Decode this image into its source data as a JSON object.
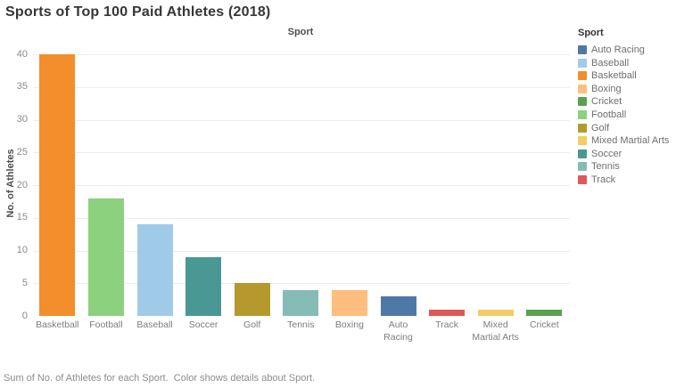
{
  "window": {
    "background": "#ffffff"
  },
  "title": "Sports of Top 100 Paid Athletes (2018)",
  "pane_header": "Sport",
  "footer": "Sum of No. of Athletes for each Sport.  Color shows details about Sport.",
  "legend": {
    "title": "Sport",
    "items": [
      {
        "label": "Auto Racing",
        "color": "#4e79a7"
      },
      {
        "label": "Baseball",
        "color": "#a0cbe8"
      },
      {
        "label": "Basketball",
        "color": "#f28e2b"
      },
      {
        "label": "Boxing",
        "color": "#ffbe7d"
      },
      {
        "label": "Cricket",
        "color": "#59a14f"
      },
      {
        "label": "Football",
        "color": "#8cd17d"
      },
      {
        "label": "Golf",
        "color": "#b6992d"
      },
      {
        "label": "Mixed Martial Arts",
        "color": "#f1ce63"
      },
      {
        "label": "Soccer",
        "color": "#499894"
      },
      {
        "label": "Tennis",
        "color": "#86bcb6"
      },
      {
        "label": "Track",
        "color": "#e15759"
      }
    ]
  },
  "chart_data": {
    "type": "bar",
    "title": "Sports of Top 100 Paid Athletes (2018)",
    "xlabel": "Sport",
    "ylabel": "No. of Athletes",
    "categories": [
      "Basketball",
      "Football",
      "Baseball",
      "Soccer",
      "Golf",
      "Tennis",
      "Boxing",
      "Auto Racing",
      "Track",
      "Mixed Martial Arts",
      "Cricket"
    ],
    "values": [
      40,
      18,
      14,
      9,
      5,
      4,
      4,
      3,
      1,
      1,
      1
    ],
    "ylim": [
      0,
      40
    ],
    "yticks": [
      0,
      5,
      10,
      15,
      20,
      25,
      30,
      35,
      40
    ],
    "grid": true,
    "legend_position": "right",
    "colors": {
      "Auto Racing": "#4e79a7",
      "Baseball": "#a0cbe8",
      "Basketball": "#f28e2b",
      "Boxing": "#ffbe7d",
      "Cricket": "#59a14f",
      "Football": "#8cd17d",
      "Golf": "#b6992d",
      "Mixed Martial Arts": "#f1ce63",
      "Soccer": "#499894",
      "Tennis": "#86bcb6",
      "Track": "#e15759"
    }
  }
}
